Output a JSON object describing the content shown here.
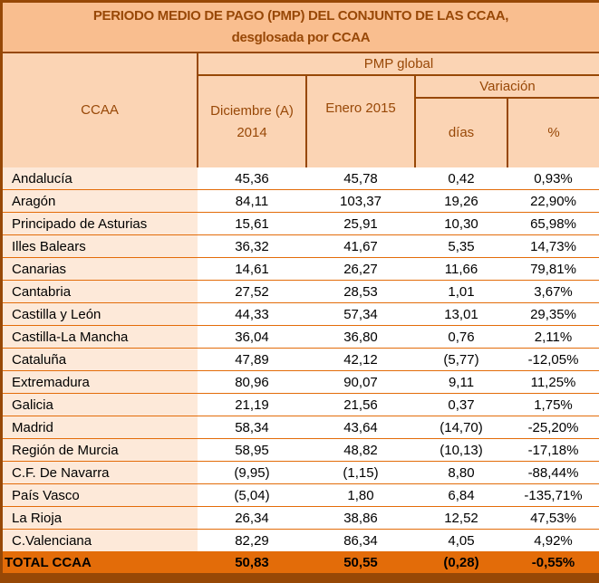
{
  "title": {
    "line1": "PERIODO MEDIO DE PAGO (PMP) DEL CONJUNTO DE LAS CCAA,",
    "line2": "desglosada por CCAA"
  },
  "header": {
    "ccaa": "CCAA",
    "pmp_global": "PMP global",
    "dic": "Diciembre (A) 2014",
    "ene": "Enero  2015",
    "variacion": "Variación",
    "dias": "días",
    "pct": "%"
  },
  "rows": [
    {
      "name": "Andalucía",
      "dic": "45,36",
      "ene": "45,78",
      "dias": "0,42",
      "pct": "0,93%"
    },
    {
      "name": "Aragón",
      "dic": "84,11",
      "ene": "103,37",
      "dias": "19,26",
      "pct": "22,90%"
    },
    {
      "name": "Principado de Asturias",
      "dic": "15,61",
      "ene": "25,91",
      "dias": "10,30",
      "pct": "65,98%"
    },
    {
      "name": "Illes Balears",
      "dic": "36,32",
      "ene": "41,67",
      "dias": "5,35",
      "pct": "14,73%"
    },
    {
      "name": "Canarias",
      "dic": "14,61",
      "ene": "26,27",
      "dias": "11,66",
      "pct": "79,81%"
    },
    {
      "name": "Cantabria",
      "dic": "27,52",
      "ene": "28,53",
      "dias": "1,01",
      "pct": "3,67%"
    },
    {
      "name": "Castilla y León",
      "dic": "44,33",
      "ene": "57,34",
      "dias": "13,01",
      "pct": "29,35%"
    },
    {
      "name": "Castilla-La Mancha",
      "dic": "36,04",
      "ene": "36,80",
      "dias": "0,76",
      "pct": "2,11%"
    },
    {
      "name": "Cataluña",
      "dic": "47,89",
      "ene": "42,12",
      "dias": "(5,77)",
      "pct": "-12,05%"
    },
    {
      "name": "Extremadura",
      "dic": "80,96",
      "ene": "90,07",
      "dias": "9,11",
      "pct": "11,25%"
    },
    {
      "name": "Galicia",
      "dic": "21,19",
      "ene": "21,56",
      "dias": "0,37",
      "pct": "1,75%"
    },
    {
      "name": "Madrid",
      "dic": "58,34",
      "ene": "43,64",
      "dias": "(14,70)",
      "pct": "-25,20%"
    },
    {
      "name": "Región de Murcia",
      "dic": "58,95",
      "ene": "48,82",
      "dias": "(10,13)",
      "pct": "-17,18%"
    },
    {
      "name": "C.F. De Navarra",
      "dic": "(9,95)",
      "ene": "(1,15)",
      "dias": "8,80",
      "pct": "-88,44%"
    },
    {
      "name": "País Vasco",
      "dic": "(5,04)",
      "ene": "1,80",
      "dias": "6,84",
      "pct": "-135,71%"
    },
    {
      "name": "La Rioja",
      "dic": "26,34",
      "ene": "38,86",
      "dias": "12,52",
      "pct": "47,53%"
    },
    {
      "name": "C.Valenciana",
      "dic": "82,29",
      "ene": "86,34",
      "dias": "4,05",
      "pct": "4,92%"
    }
  ],
  "total": {
    "name": "TOTAL CCAA",
    "dic": "50,83",
    "ene": "50,55",
    "dias": "(0,28)",
    "pct": "-0,55%"
  },
  "colors": {
    "title_bg": "#f9be8f",
    "header_bg": "#fbd4b4",
    "name_bg": "#fde9d9",
    "accent": "#e36c09",
    "border_dark": "#974806"
  }
}
